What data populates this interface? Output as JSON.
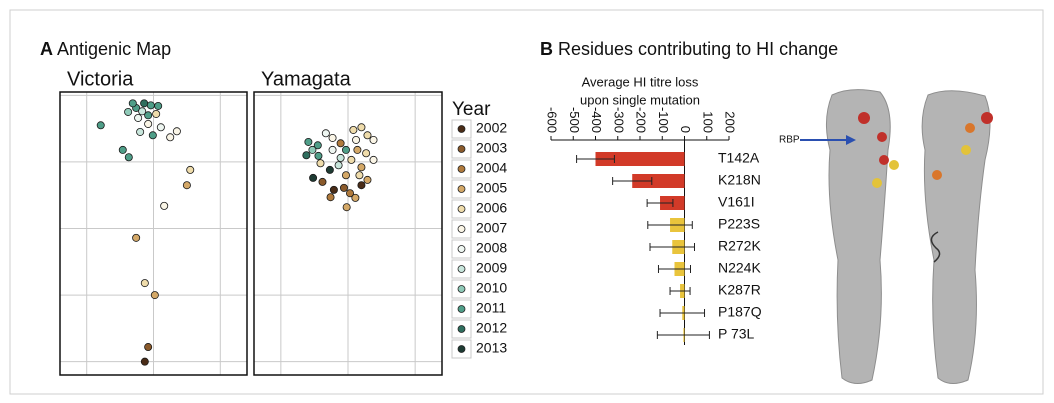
{
  "panels": [
    {
      "letter": "A",
      "title": "Antigenic Map"
    },
    {
      "letter": "B",
      "title": "Residues contributing to HI change"
    }
  ],
  "legend": {
    "title": "Year",
    "items": [
      {
        "name": "2002",
        "color": "#4a2c17"
      },
      {
        "name": "2003",
        "color": "#8a5a2b"
      },
      {
        "name": "2004",
        "color": "#b07a3c"
      },
      {
        "name": "2005",
        "color": "#d4a867"
      },
      {
        "name": "2006",
        "color": "#efdcab"
      },
      {
        "name": "2007",
        "color": "#faf5e6"
      },
      {
        "name": "2008",
        "color": "#eef6f1"
      },
      {
        "name": "2009",
        "color": "#c8e6dc"
      },
      {
        "name": "2010",
        "color": "#8fcab8"
      },
      {
        "name": "2011",
        "color": "#4f9e88"
      },
      {
        "name": "2012",
        "color": "#2f6e5e"
      },
      {
        "name": "2013",
        "color": "#1e3b33"
      }
    ]
  },
  "chart_data": [
    {
      "type": "scatter",
      "title": "Victoria",
      "xlim": [
        -0.4,
        2.4
      ],
      "ylim": [
        -0.2,
        4.05
      ],
      "xticks": [
        0,
        1,
        2
      ],
      "yticks": [
        0,
        1,
        2,
        3,
        4
      ],
      "grid": true,
      "x": [
        0.87,
        0.92,
        1.02,
        0.87,
        0.74,
        1.16,
        1.5,
        1.55,
        0.63,
        0.54,
        0.21,
        0.8,
        0.99,
        1.25,
        1.35,
        1.11,
        0.92,
        0.77,
        0.92,
        0.74,
        0.62,
        0.69,
        0.86,
        0.96,
        1.07,
        1.04,
        0.83
      ],
      "y": [
        0,
        0.22,
        1.0,
        1.18,
        1.86,
        2.34,
        2.65,
        2.88,
        3.07,
        3.18,
        3.55,
        3.45,
        3.4,
        3.37,
        3.46,
        3.52,
        3.57,
        3.66,
        3.7,
        3.81,
        3.75,
        3.88,
        3.88,
        3.85,
        3.84,
        3.72,
        3.76
      ],
      "year": [
        "2002",
        "2003",
        "2005",
        "2006",
        "2005",
        "2007",
        "2005",
        "2006",
        "2011",
        "2011",
        "2011",
        "2009",
        "2011",
        "2007",
        "2007",
        "2008",
        "2007",
        "2008",
        "2011",
        "2011",
        "2010",
        "2011",
        "2012",
        "2011",
        "2011",
        "2006",
        "2009"
      ]
    },
    {
      "type": "scatter",
      "title": "Yamagata",
      "xlim": [
        -0.4,
        2.4
      ],
      "ylim": [
        -0.2,
        4.05
      ],
      "xticks": [
        0,
        1,
        2
      ],
      "yticks": [
        0,
        1,
        2,
        3,
        4
      ],
      "grid": true,
      "x": [
        1.08,
        1.2,
        1.29,
        1.38,
        1.12,
        0.89,
        0.77,
        0.67,
        0.55,
        0.41,
        0.47,
        0.56,
        0.38,
        0.77,
        0.97,
        1.14,
        1.27,
        1.38,
        0.89,
        1.05,
        0.59,
        0.86,
        1.2,
        0.73,
        0.48,
        0.97,
        1.17,
        1.29,
        0.62,
        0.94,
        1.03,
        1.11,
        0.74,
        0.98,
        0.79,
        1.2
      ],
      "y": [
        3.48,
        3.52,
        3.4,
        3.33,
        3.33,
        3.28,
        3.36,
        3.43,
        3.25,
        3.3,
        3.18,
        3.09,
        3.1,
        3.18,
        3.18,
        3.18,
        3.13,
        3.03,
        3.06,
        3.03,
        2.98,
        2.95,
        2.92,
        2.88,
        2.76,
        2.8,
        2.8,
        2.73,
        2.7,
        2.61,
        2.53,
        2.46,
        2.47,
        2.32,
        2.58,
        2.65
      ],
      "year": [
        "2006",
        "2006",
        "2006",
        "2007",
        "2007",
        "2004",
        "2007",
        "2008",
        "2011",
        "2011",
        "2010",
        "2011",
        "2012",
        "2008",
        "2011",
        "2005",
        "2006",
        "2007",
        "2009",
        "2006",
        "2006",
        "2009",
        "2005",
        "2013",
        "2013",
        "2005",
        "2006",
        "2005",
        "2003",
        "2003",
        "2004",
        "2005",
        "2004",
        "2005",
        "2002",
        "2002"
      ]
    },
    {
      "type": "bar",
      "orientation": "horizontal",
      "xlabel": [
        "Average HI titre loss",
        "upon single mutation"
      ],
      "categories": [
        "T142A",
        "K218N",
        "V161I",
        "P223S",
        "R272K",
        "N224K",
        "K287R",
        "P187Q",
        "P 73L"
      ],
      "values": [
        -400,
        -235,
        -110,
        -65,
        -55,
        -45,
        -20,
        -10,
        -5
      ],
      "errors": [
        85,
        88,
        58,
        100,
        100,
        72,
        45,
        100,
        117
      ],
      "colors": [
        "#d23a28",
        "#d23a28",
        "#d23a28",
        "#e9c43c",
        "#e9c43c",
        "#e9c43c",
        "#e9c43c",
        "#e9c43c",
        "#e9c43c"
      ],
      "xlim": [
        -600,
        200
      ],
      "xticks": [
        -600,
        -500,
        -400,
        -300,
        -200,
        -100,
        0,
        100,
        200
      ]
    }
  ],
  "structure": {
    "label": "RBP"
  }
}
